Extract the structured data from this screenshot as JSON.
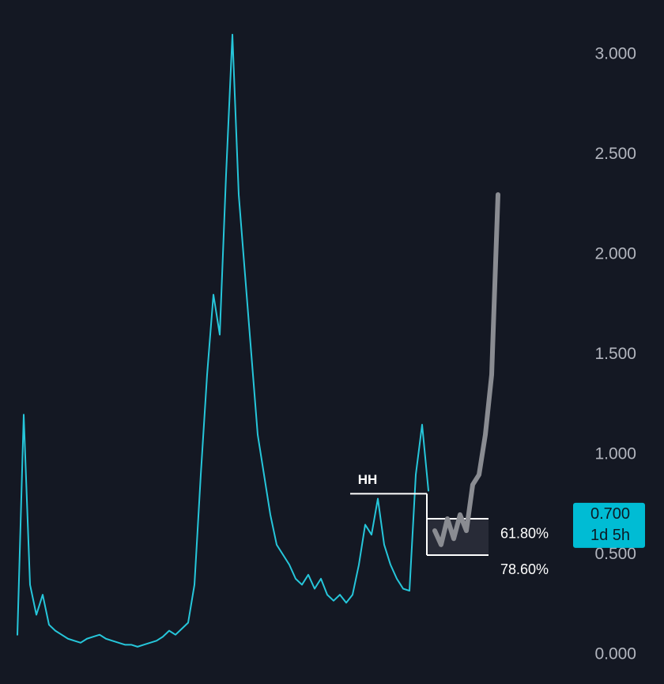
{
  "chart_data": {
    "type": "line",
    "series": [
      {
        "color": "#26c6da",
        "values": [
          0.1,
          1.2,
          0.35,
          0.2,
          0.3,
          0.15,
          0.12,
          0.1,
          0.08,
          0.07,
          0.06,
          0.08,
          0.09,
          0.1,
          0.08,
          0.07,
          0.06,
          0.05,
          0.05,
          0.04,
          0.05,
          0.06,
          0.07,
          0.09,
          0.12,
          0.1,
          0.13,
          0.16,
          0.35,
          0.9,
          1.4,
          1.8,
          1.6,
          2.4,
          3.1,
          2.3,
          1.9,
          1.5,
          1.1,
          0.9,
          0.7,
          0.55,
          0.5,
          0.45,
          0.38,
          0.35,
          0.4,
          0.33,
          0.38,
          0.3,
          0.27,
          0.3,
          0.26,
          0.3,
          0.45,
          0.65,
          0.6,
          0.78,
          0.55,
          0.45,
          0.38,
          0.33,
          0.32,
          0.9,
          1.15,
          0.82,
          null,
          null,
          null,
          null,
          null,
          null,
          null,
          null,
          null,
          null,
          null
        ]
      },
      {
        "color": "#8a8c92",
        "values": [
          null,
          null,
          null,
          null,
          null,
          null,
          null,
          null,
          null,
          null,
          null,
          null,
          null,
          null,
          null,
          null,
          null,
          null,
          null,
          null,
          null,
          null,
          null,
          null,
          null,
          null,
          null,
          null,
          null,
          null,
          null,
          null,
          null,
          null,
          null,
          null,
          null,
          null,
          null,
          null,
          null,
          null,
          null,
          null,
          null,
          null,
          null,
          null,
          null,
          null,
          null,
          null,
          null,
          null,
          null,
          null,
          null,
          null,
          null,
          null,
          null,
          null,
          null,
          null,
          null,
          null,
          0.62,
          0.55,
          0.68,
          0.58,
          0.7,
          0.62,
          0.85,
          0.9,
          1.1,
          1.4,
          2.3
        ]
      }
    ],
    "ylim": [
      0,
      3
    ],
    "yticks": [
      {
        "value": 0,
        "label": "0.000"
      },
      {
        "value": 0.5,
        "label": "0.500"
      },
      {
        "value": 1,
        "label": "1.000"
      },
      {
        "value": 1.5,
        "label": "1.500"
      },
      {
        "value": 2,
        "label": "2.000"
      },
      {
        "value": 2.5,
        "label": "2.500"
      },
      {
        "value": 3,
        "label": "3.000"
      }
    ],
    "hh_level": {
      "value": 0.805,
      "label": "HH"
    },
    "fib_levels": [
      {
        "value": 0.68,
        "label": "61.80%"
      },
      {
        "value": 0.498,
        "label": "78.60%"
      }
    ],
    "price_tag": {
      "value": 0.7,
      "label": "0.700",
      "countdown": "1d 5h"
    }
  }
}
